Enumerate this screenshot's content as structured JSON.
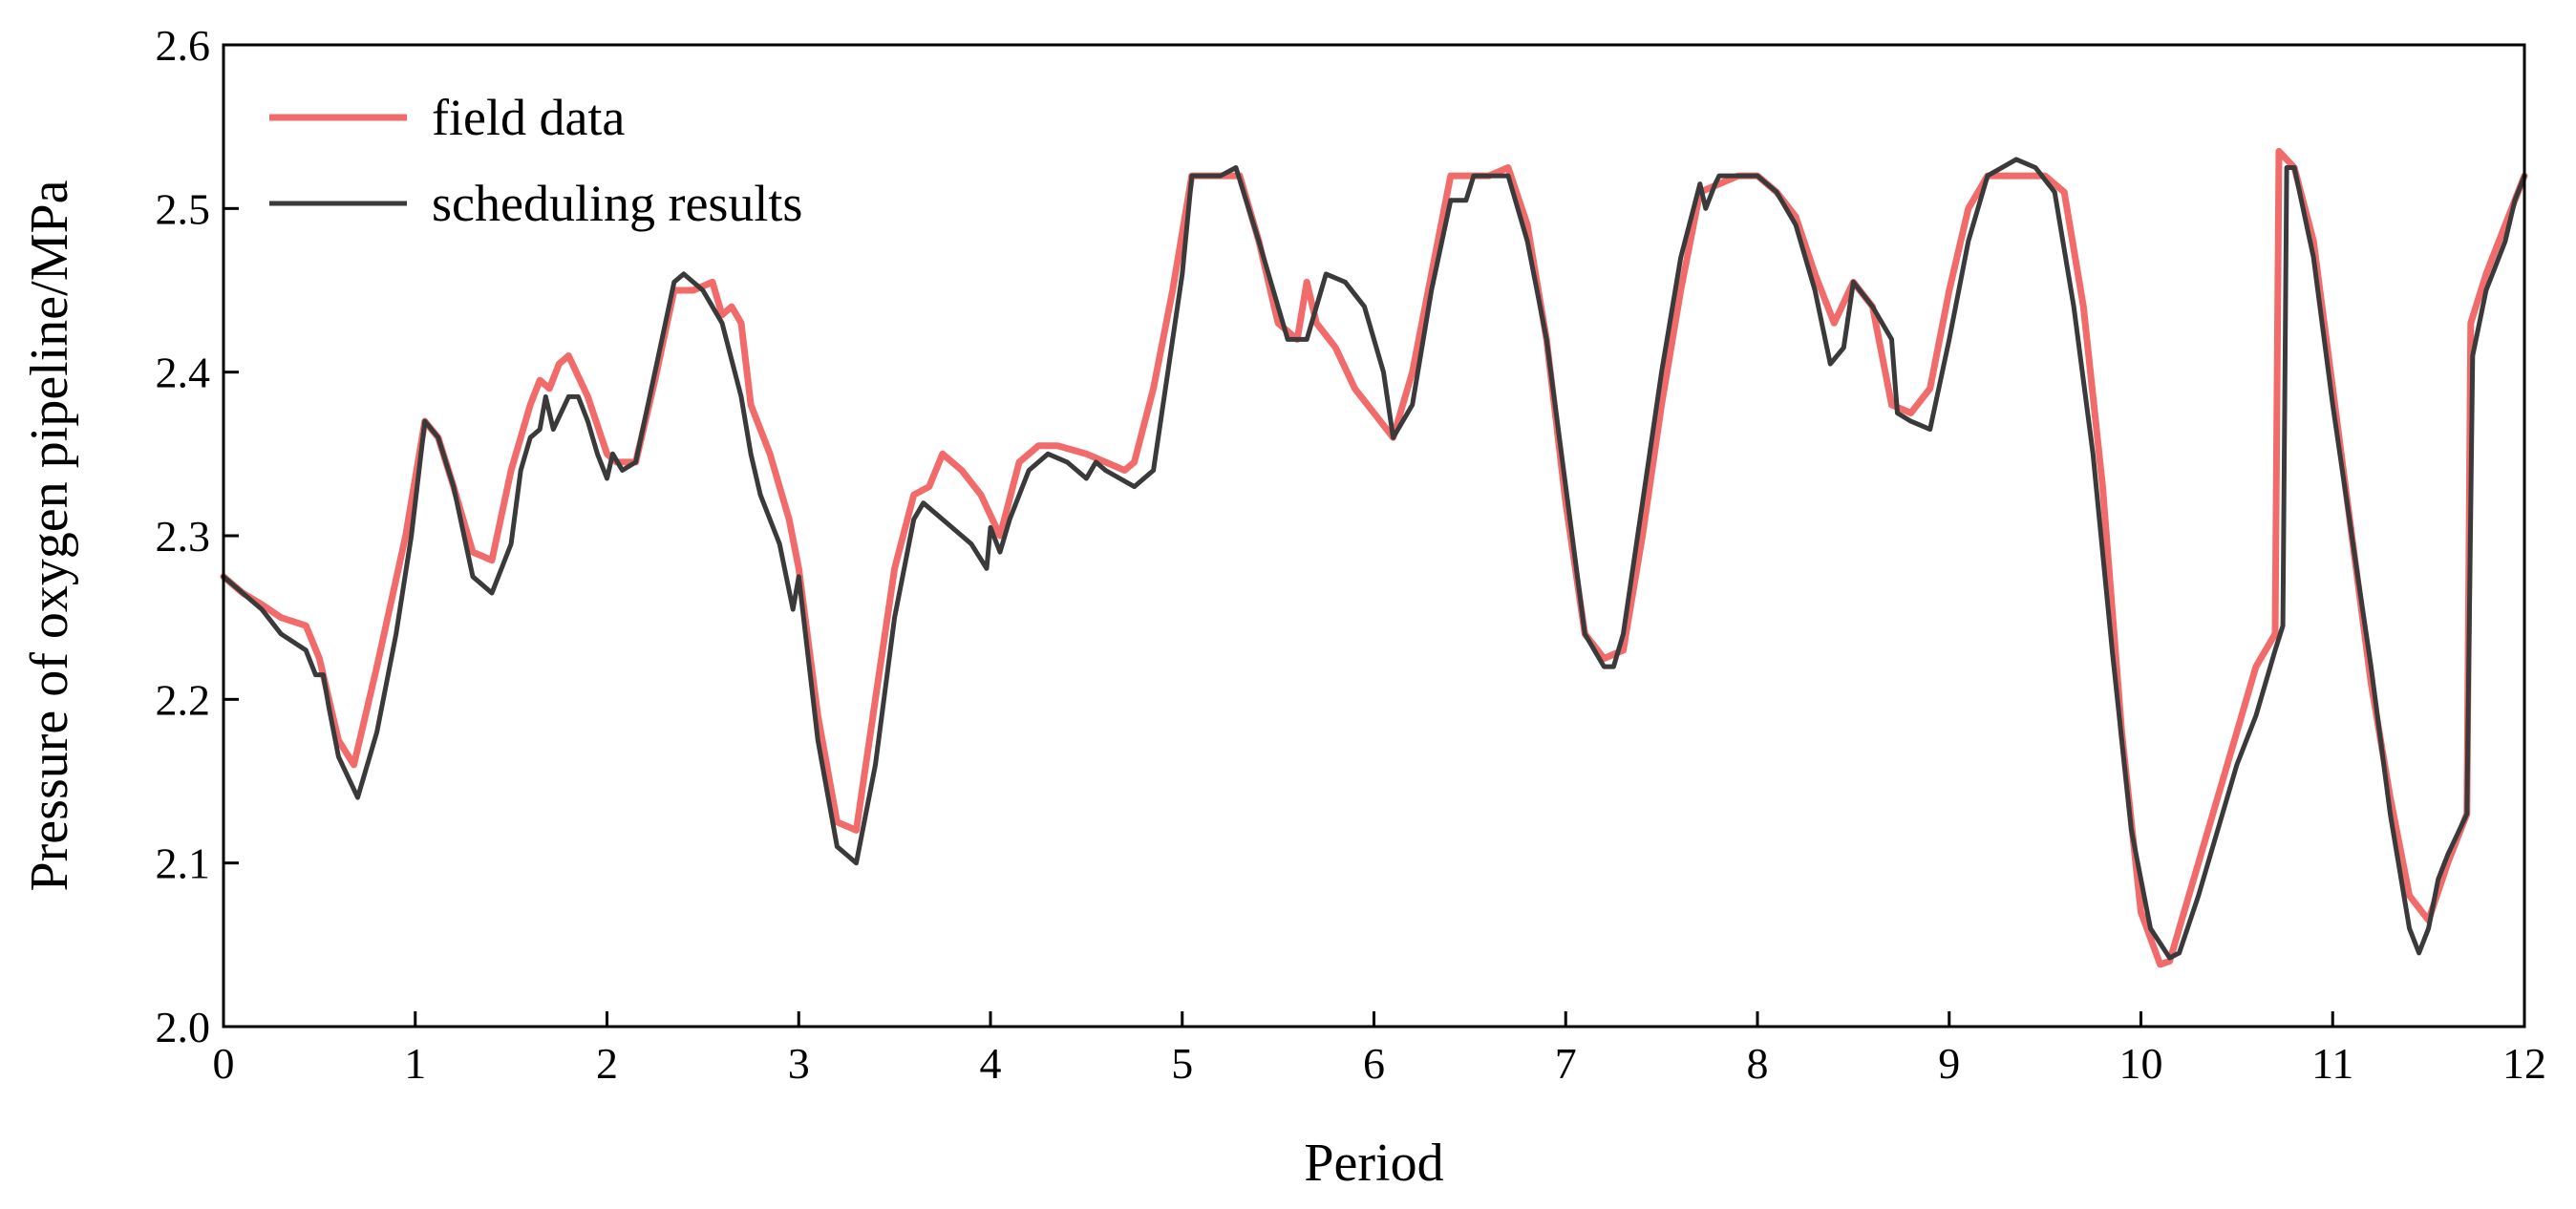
{
  "chart_data": {
    "type": "line",
    "title": "",
    "xlabel": "Period",
    "ylabel": "Pressure of oxygen pipeline/MPa",
    "xlim": [
      0,
      12
    ],
    "ylim": [
      2.0,
      2.6
    ],
    "xticks": [
      "0",
      "1",
      "2",
      "3",
      "4",
      "5",
      "6",
      "7",
      "8",
      "9",
      "10",
      "11",
      "12"
    ],
    "yticks": [
      "2.0",
      "2.1",
      "2.2",
      "2.3",
      "2.4",
      "2.5",
      "2.6"
    ],
    "grid": false,
    "legend_position": "top-left",
    "series": [
      {
        "name": "field data",
        "color": "#f26b6b",
        "x": [
          0,
          0.1,
          0.2,
          0.3,
          0.43,
          0.5,
          0.6,
          0.68,
          0.8,
          0.95,
          1.05,
          1.12,
          1.2,
          1.3,
          1.4,
          1.5,
          1.6,
          1.65,
          1.7,
          1.75,
          1.8,
          1.9,
          2.0,
          2.05,
          2.15,
          2.25,
          2.35,
          2.45,
          2.55,
          2.6,
          2.65,
          2.7,
          2.75,
          2.85,
          2.95,
          3.0,
          3.1,
          3.2,
          3.3,
          3.4,
          3.5,
          3.6,
          3.68,
          3.75,
          3.85,
          3.95,
          4.05,
          4.15,
          4.25,
          4.35,
          4.5,
          4.6,
          4.7,
          4.75,
          4.85,
          4.95,
          5.05,
          5.2,
          5.3,
          5.4,
          5.5,
          5.6,
          5.65,
          5.7,
          5.8,
          5.9,
          6.0,
          6.1,
          6.2,
          6.3,
          6.4,
          6.5,
          6.6,
          6.7,
          6.8,
          6.9,
          7.0,
          7.1,
          7.2,
          7.3,
          7.4,
          7.5,
          7.6,
          7.7,
          7.8,
          7.9,
          8.0,
          8.1,
          8.2,
          8.3,
          8.4,
          8.5,
          8.6,
          8.7,
          8.8,
          8.9,
          9.0,
          9.1,
          9.2,
          9.3,
          9.4,
          9.5,
          9.6,
          9.7,
          9.8,
          9.9,
          10.0,
          10.1,
          10.15,
          10.2,
          10.3,
          10.4,
          10.5,
          10.6,
          10.7,
          10.72,
          10.8,
          10.9,
          11.0,
          11.1,
          11.2,
          11.3,
          11.4,
          11.5,
          11.6,
          11.7,
          11.72,
          11.8,
          11.9,
          12.0
        ],
        "y": [
          2.275,
          2.265,
          2.258,
          2.25,
          2.245,
          2.225,
          2.175,
          2.16,
          2.22,
          2.3,
          2.37,
          2.36,
          2.33,
          2.29,
          2.285,
          2.34,
          2.38,
          2.395,
          2.39,
          2.405,
          2.41,
          2.385,
          2.35,
          2.345,
          2.345,
          2.395,
          2.45,
          2.45,
          2.455,
          2.435,
          2.44,
          2.43,
          2.38,
          2.35,
          2.31,
          2.28,
          2.19,
          2.125,
          2.12,
          2.2,
          2.28,
          2.325,
          2.33,
          2.35,
          2.34,
          2.325,
          2.3,
          2.345,
          2.355,
          2.355,
          2.35,
          2.345,
          2.34,
          2.345,
          2.39,
          2.45,
          2.52,
          2.52,
          2.52,
          2.48,
          2.43,
          2.42,
          2.455,
          2.43,
          2.415,
          2.39,
          2.375,
          2.36,
          2.4,
          2.46,
          2.52,
          2.52,
          2.52,
          2.525,
          2.49,
          2.42,
          2.32,
          2.24,
          2.225,
          2.23,
          2.3,
          2.38,
          2.45,
          2.51,
          2.515,
          2.52,
          2.52,
          2.51,
          2.495,
          2.46,
          2.43,
          2.455,
          2.44,
          2.38,
          2.375,
          2.39,
          2.45,
          2.5,
          2.52,
          2.52,
          2.52,
          2.52,
          2.51,
          2.44,
          2.33,
          2.18,
          2.07,
          2.038,
          2.04,
          2.06,
          2.1,
          2.14,
          2.18,
          2.22,
          2.24,
          2.535,
          2.525,
          2.48,
          2.39,
          2.3,
          2.21,
          2.14,
          2.08,
          2.065,
          2.1,
          2.13,
          2.43,
          2.46,
          2.49,
          2.52
        ]
      },
      {
        "name": "scheduling results",
        "color": "#3a3a3a",
        "x": [
          0,
          0.1,
          0.2,
          0.3,
          0.43,
          0.48,
          0.52,
          0.55,
          0.6,
          0.7,
          0.8,
          0.9,
          0.98,
          1.05,
          1.12,
          1.2,
          1.3,
          1.4,
          1.5,
          1.55,
          1.6,
          1.65,
          1.68,
          1.72,
          1.8,
          1.85,
          1.9,
          1.95,
          2.0,
          2.03,
          2.08,
          2.15,
          2.25,
          2.35,
          2.4,
          2.5,
          2.6,
          2.7,
          2.75,
          2.8,
          2.9,
          2.97,
          3.0,
          3.1,
          3.2,
          3.3,
          3.4,
          3.5,
          3.6,
          3.65,
          3.7,
          3.8,
          3.9,
          3.98,
          4.0,
          4.05,
          4.1,
          4.2,
          4.3,
          4.4,
          4.5,
          4.55,
          4.6,
          4.75,
          4.85,
          5.0,
          5.05,
          5.2,
          5.28,
          5.4,
          5.55,
          5.65,
          5.75,
          5.85,
          5.95,
          6.05,
          6.1,
          6.2,
          6.3,
          6.4,
          6.48,
          6.52,
          6.7,
          6.8,
          6.9,
          7.0,
          7.1,
          7.2,
          7.25,
          7.3,
          7.4,
          7.5,
          7.6,
          7.7,
          7.73,
          7.78,
          7.8,
          7.9,
          8.0,
          8.1,
          8.2,
          8.3,
          8.38,
          8.45,
          8.5,
          8.6,
          8.7,
          8.73,
          8.8,
          8.9,
          9.0,
          9.1,
          9.2,
          9.35,
          9.45,
          9.55,
          9.65,
          9.75,
          9.85,
          9.95,
          10.05,
          10.15,
          10.2,
          10.3,
          10.4,
          10.5,
          10.55,
          10.6,
          10.7,
          10.74,
          10.76,
          10.8,
          10.9,
          11.0,
          11.1,
          11.2,
          11.3,
          11.4,
          11.45,
          11.5,
          11.55,
          11.6,
          11.7,
          11.73,
          11.8,
          11.9,
          11.95,
          12.0
        ],
        "y": [
          2.275,
          2.265,
          2.255,
          2.24,
          2.23,
          2.215,
          2.215,
          2.195,
          2.165,
          2.14,
          2.18,
          2.24,
          2.3,
          2.37,
          2.36,
          2.33,
          2.275,
          2.265,
          2.295,
          2.34,
          2.36,
          2.365,
          2.385,
          2.365,
          2.385,
          2.385,
          2.37,
          2.35,
          2.335,
          2.35,
          2.34,
          2.345,
          2.4,
          2.455,
          2.46,
          2.45,
          2.43,
          2.385,
          2.35,
          2.325,
          2.295,
          2.255,
          2.275,
          2.175,
          2.11,
          2.1,
          2.16,
          2.25,
          2.31,
          2.32,
          2.315,
          2.305,
          2.295,
          2.28,
          2.305,
          2.29,
          2.31,
          2.34,
          2.35,
          2.345,
          2.335,
          2.345,
          2.34,
          2.33,
          2.34,
          2.46,
          2.52,
          2.52,
          2.525,
          2.48,
          2.42,
          2.42,
          2.46,
          2.455,
          2.44,
          2.4,
          2.36,
          2.38,
          2.45,
          2.505,
          2.505,
          2.52,
          2.52,
          2.48,
          2.42,
          2.33,
          2.24,
          2.22,
          2.22,
          2.24,
          2.32,
          2.4,
          2.47,
          2.515,
          2.5,
          2.515,
          2.52,
          2.52,
          2.52,
          2.51,
          2.49,
          2.45,
          2.405,
          2.415,
          2.455,
          2.44,
          2.42,
          2.375,
          2.37,
          2.365,
          2.42,
          2.48,
          2.52,
          2.53,
          2.525,
          2.51,
          2.44,
          2.35,
          2.23,
          2.12,
          2.06,
          2.042,
          2.045,
          2.08,
          2.12,
          2.16,
          2.175,
          2.19,
          2.23,
          2.245,
          2.525,
          2.525,
          2.47,
          2.38,
          2.3,
          2.22,
          2.13,
          2.06,
          2.045,
          2.06,
          2.09,
          2.105,
          2.13,
          2.41,
          2.45,
          2.48,
          2.505,
          2.52
        ]
      }
    ]
  }
}
